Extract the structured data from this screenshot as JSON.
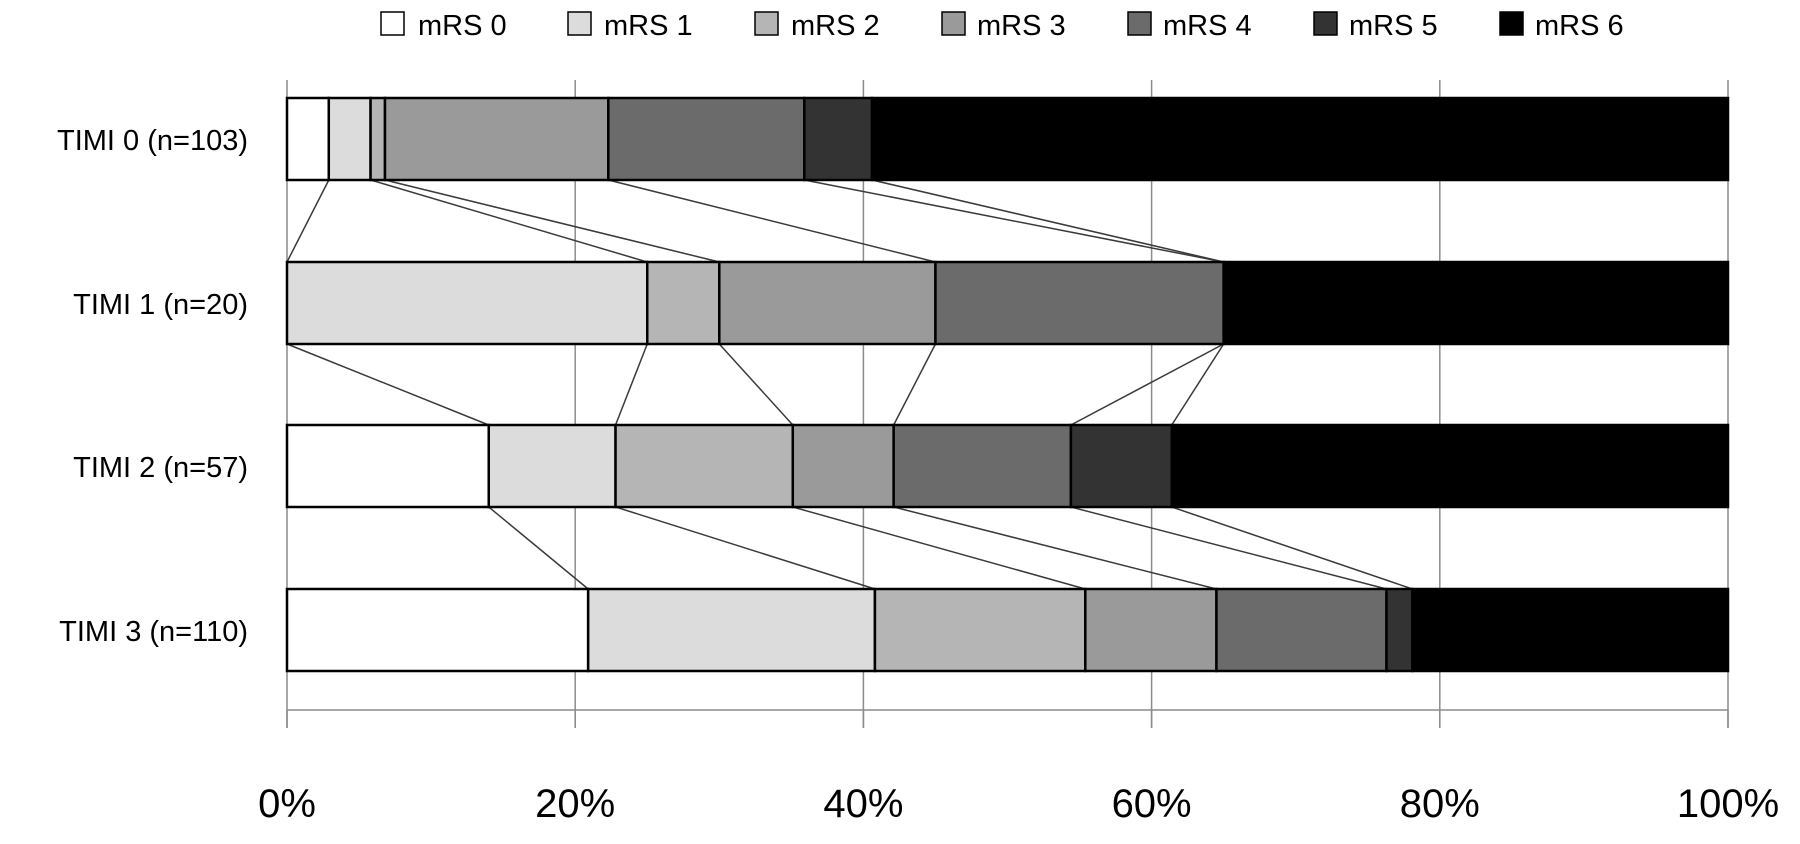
{
  "chart_data": {
    "type": "bar",
    "orientation": "horizontal",
    "stacked": "100%",
    "categories": [
      "TIMI 0 (n=103)",
      "TIMI 1 (n=20)",
      "TIMI 2 (n=57)",
      "TIMI 3 (n=110)"
    ],
    "series": [
      {
        "name": "mRS 0",
        "color": "#ffffff",
        "values": [
          2.9,
          0.0,
          14.0,
          20.9
        ]
      },
      {
        "name": "mRS 1",
        "color": "#dcdcdc",
        "values": [
          2.9,
          25.0,
          8.8,
          19.9
        ]
      },
      {
        "name": "mRS 2",
        "color": "#b5b5b5",
        "values": [
          1.0,
          5.0,
          12.3,
          14.6
        ]
      },
      {
        "name": "mRS 3",
        "color": "#9a9a9a",
        "values": [
          15.5,
          15.0,
          7.0,
          9.1
        ]
      },
      {
        "name": "mRS 4",
        "color": "#6b6b6b",
        "values": [
          13.6,
          20.0,
          12.3,
          11.8
        ]
      },
      {
        "name": "mRS 5",
        "color": "#333333",
        "values": [
          4.7,
          0.0,
          7.0,
          1.8
        ]
      },
      {
        "name": "mRS 6",
        "color": "#000000",
        "values": [
          59.4,
          35.0,
          38.6,
          21.9
        ]
      }
    ],
    "x_ticks": [
      "0%",
      "20%",
      "40%",
      "60%",
      "80%",
      "100%"
    ],
    "xlim": [
      0,
      100
    ],
    "grid": "vertical",
    "legend": "top",
    "connector_lines": true,
    "title": "",
    "xlabel": "",
    "ylabel": ""
  }
}
